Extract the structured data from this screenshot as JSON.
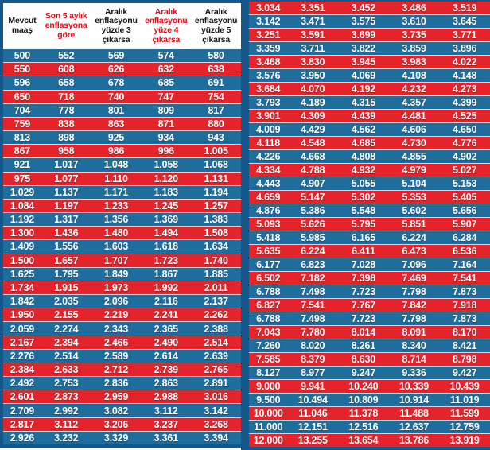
{
  "colors": {
    "row_blue": "#1e6d9d",
    "row_red": "#e4232b",
    "border_blue": "#14568a",
    "header_red": "#e30a17",
    "header_black": "#141414"
  },
  "left_table": {
    "headers": [
      {
        "text": "Mevcut maaş",
        "color": "black"
      },
      {
        "text": "Son 5 aylık enflasyona göre",
        "color": "red"
      },
      {
        "text": "Aralık enflasyonu yüzde 3 çıkarsa",
        "color": "black"
      },
      {
        "text": "Aralık enflasyonu yüze 4 çıkarsa",
        "color": "red"
      },
      {
        "text": "Aralık enflasyonu yüzde 5 çıkarsa",
        "color": "black"
      }
    ],
    "first_row_color": "blue",
    "rows": [
      [
        "500",
        "552",
        "569",
        "574",
        "580"
      ],
      [
        "550",
        "608",
        "626",
        "632",
        "638"
      ],
      [
        "596",
        "658",
        "678",
        "685",
        "691"
      ],
      [
        "650",
        "718",
        "740",
        "747",
        "754"
      ],
      [
        "704",
        "778",
        "801",
        "809",
        "817"
      ],
      [
        "759",
        "838",
        "863",
        "871",
        "880"
      ],
      [
        "813",
        "898",
        "925",
        "934",
        "943"
      ],
      [
        "867",
        "958",
        "986",
        "996",
        "1.005"
      ],
      [
        "921",
        "1.017",
        "1.048",
        "1.058",
        "1.068"
      ],
      [
        "975",
        "1.077",
        "1.110",
        "1.120",
        "1.131"
      ],
      [
        "1.029",
        "1.137",
        "1.171",
        "1.183",
        "1.194"
      ],
      [
        "1.084",
        "1.197",
        "1.233",
        "1.245",
        "1.257"
      ],
      [
        "1.192",
        "1.317",
        "1.356",
        "1.369",
        "1.383"
      ],
      [
        "1.300",
        "1.436",
        "1.480",
        "1.494",
        "1.508"
      ],
      [
        "1.409",
        "1.556",
        "1.603",
        "1.618",
        "1.634"
      ],
      [
        "1.500",
        "1.657",
        "1.707",
        "1.723",
        "1.740"
      ],
      [
        "1.625",
        "1.795",
        "1.849",
        "1.867",
        "1.885"
      ],
      [
        "1.734",
        "1.915",
        "1.973",
        "1.992",
        "2.011"
      ],
      [
        "1.842",
        "2.035",
        "2.096",
        "2.116",
        "2.137"
      ],
      [
        "1.950",
        "2.155",
        "2.219",
        "2.241",
        "2.262"
      ],
      [
        "2.059",
        "2.274",
        "2.343",
        "2.365",
        "2.388"
      ],
      [
        "2.167",
        "2.394",
        "2.466",
        "2.490",
        "2.514"
      ],
      [
        "2.276",
        "2.514",
        "2.589",
        "2.614",
        "2.639"
      ],
      [
        "2.384",
        "2.633",
        "2.712",
        "2.739",
        "2.765"
      ],
      [
        "2.492",
        "2.753",
        "2.836",
        "2.863",
        "2.891"
      ],
      [
        "2.601",
        "2.873",
        "2.959",
        "2.988",
        "3.016"
      ],
      [
        "2.709",
        "2.992",
        "3.082",
        "3.112",
        "3.142"
      ],
      [
        "2.817",
        "3.112",
        "3.206",
        "3.237",
        "3.268"
      ],
      [
        "2.926",
        "3.232",
        "3.329",
        "3.361",
        "3.394"
      ]
    ]
  },
  "right_table": {
    "first_row_color": "red",
    "rows": [
      [
        "3.034",
        "3.351",
        "3.452",
        "3.486",
        "3.519"
      ],
      [
        "3.142",
        "3.471",
        "3.575",
        "3.610",
        "3.645"
      ],
      [
        "3.251",
        "3.591",
        "3.699",
        "3.735",
        "3.771"
      ],
      [
        "3.359",
        "3.711",
        "3.822",
        "3.859",
        "3.896"
      ],
      [
        "3.468",
        "3.830",
        "3.945",
        "3.983",
        "4.022"
      ],
      [
        "3.576",
        "3.950",
        "4.069",
        "4.108",
        "4.148"
      ],
      [
        "3.684",
        "4.070",
        "4.192",
        "4.232",
        "4.273"
      ],
      [
        "3.793",
        "4.189",
        "4.315",
        "4.357",
        "4.399"
      ],
      [
        "3.901",
        "4.309",
        "4.439",
        "4.481",
        "4.525"
      ],
      [
        "4.009",
        "4.429",
        "4.562",
        "4.606",
        "4.650"
      ],
      [
        "4.118",
        "4.548",
        "4.685",
        "4.730",
        "4.776"
      ],
      [
        "4.226",
        "4.668",
        "4.808",
        "4.855",
        "4.902"
      ],
      [
        "4.334",
        "4.788",
        "4.932",
        "4.979",
        "5.027"
      ],
      [
        "4.443",
        "4.907",
        "5.055",
        "5.104",
        "5.153"
      ],
      [
        "4.659",
        "5.147",
        "5.302",
        "5.353",
        "5.405"
      ],
      [
        "4.876",
        "5.386",
        "5.548",
        "5.602",
        "5.656"
      ],
      [
        "5.093",
        "5.626",
        "5.795",
        "5.851",
        "5.907"
      ],
      [
        "5.418",
        "5.985",
        "6.165",
        "6.224",
        "6.284"
      ],
      [
        "5.635",
        "6.224",
        "6.411",
        "6.473",
        "6.536"
      ],
      [
        "6.177",
        "6.823",
        "7.028",
        "7.096",
        "7.164"
      ],
      [
        "6.502",
        "7.182",
        "7.398",
        "7.469",
        "7.541"
      ],
      [
        "6.788",
        "7.498",
        "7.723",
        "7.798",
        "7.873"
      ],
      [
        "6.827",
        "7.541",
        "7.767",
        "7.842",
        "7.918"
      ],
      [
        "6.788",
        "7.498",
        "7.723",
        "7.798",
        "7.873"
      ],
      [
        "7.043",
        "7.780",
        "8.014",
        "8.091",
        "8.170"
      ],
      [
        "7.260",
        "8.020",
        "8.261",
        "8.340",
        "8.421"
      ],
      [
        "7.585",
        "8.379",
        "8.630",
        "8.714",
        "8.798"
      ],
      [
        "8.127",
        "8.977",
        "9.247",
        "9.336",
        "9.427"
      ],
      [
        "9.000",
        "9.941",
        "10.240",
        "10.339",
        "10.439"
      ],
      [
        "9.500",
        "10.494",
        "10.809",
        "10.914",
        "11.019"
      ],
      [
        "10.000",
        "11.046",
        "11.378",
        "11.488",
        "11.599"
      ],
      [
        "11.000",
        "12.151",
        "12.516",
        "12.637",
        "12.759"
      ],
      [
        "12.000",
        "13.255",
        "13.654",
        "13.786",
        "13.919"
      ]
    ]
  },
  "chart_data": {
    "type": "table",
    "title": "Mevcut maaş / enflasyon senaryoları tablosu",
    "columns": [
      "Mevcut maaş",
      "Son 5 aylık enflasyona göre",
      "Aralık enflasyonu yüzde 3 çıkarsa",
      "Aralık enflasyonu yüze 4 çıkarsa",
      "Aralık enflasyonu yüzde 5 çıkarsa"
    ],
    "layout": "two side-by-side panels; left panel has header row, 29 data rows starting with blue; right panel continues with 33 data rows starting with red; rows alternate blue/red bands"
  }
}
